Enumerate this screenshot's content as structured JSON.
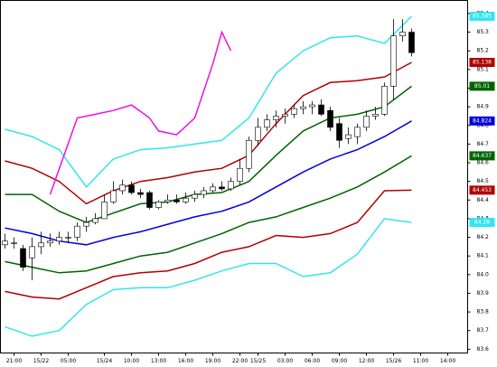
{
  "chart_data": {
    "type": "candlestick",
    "xlim": [
      -0.5,
      51.2
    ],
    "ylim": [
      83.58,
      85.47
    ],
    "xticks": [
      {
        "value": 1,
        "label": "21:00"
      },
      {
        "value": 4,
        "label": "15/22"
      },
      {
        "value": 7,
        "label": "05:00"
      },
      {
        "value": 11,
        "label": "15/24"
      },
      {
        "value": 14,
        "label": "10:00"
      },
      {
        "value": 17,
        "label": "13:00"
      },
      {
        "value": 20,
        "label": "16:00"
      },
      {
        "value": 23,
        "label": "19:00"
      },
      {
        "value": 26,
        "label": "22:00"
      },
      {
        "value": 28,
        "label": "15/25"
      },
      {
        "value": 31,
        "label": "03:00"
      },
      {
        "value": 34,
        "label": "06:00"
      },
      {
        "value": 37,
        "label": "09:00"
      },
      {
        "value": 40,
        "label": "12:00"
      },
      {
        "value": 43,
        "label": "15/26"
      },
      {
        "value": 46,
        "label": "11:00"
      },
      {
        "value": 49,
        "label": "14:00"
      }
    ],
    "yticks": [
      83.6,
      83.7,
      83.8,
      83.9,
      {
        "value": 84,
        "label": "84.0"
      },
      84.1,
      84.2,
      84.3,
      84.4,
      84.5,
      84.6,
      84.7,
      84.8,
      84.9,
      {
        "value": 85,
        "label": "85.0"
      },
      85.1,
      85.2,
      85.3,
      85.4
    ],
    "up_color": "#ffffff",
    "down_color": "#000000",
    "open": [
      84.16,
      84.17,
      84.14,
      84.09,
      84.15,
      84.17,
      84.18,
      84.2,
      84.2,
      84.26,
      84.28,
      84.3,
      84.39,
      84.45,
      84.48,
      84.44,
      84.44,
      84.36,
      84.39,
      84.4,
      84.39,
      84.41,
      84.43,
      84.45,
      84.47,
      84.46,
      84.5,
      84.57,
      84.72,
      84.79,
      84.83,
      84.85,
      84.86,
      84.89,
      84.9,
      84.91,
      84.88,
      84.81,
      84.73,
      84.74,
      84.79,
      84.85,
      84.86,
      85.01,
      85.28,
      85.3
    ],
    "high": [
      84.22,
      84.2,
      84.16,
      84.2,
      84.23,
      84.22,
      84.23,
      84.23,
      84.28,
      84.31,
      84.33,
      84.43,
      84.5,
      84.51,
      84.5,
      84.46,
      84.45,
      84.4,
      84.43,
      84.43,
      84.44,
      84.45,
      84.47,
      84.49,
      84.5,
      84.52,
      84.62,
      84.74,
      84.84,
      84.86,
      84.88,
      84.89,
      84.91,
      84.93,
      84.93,
      84.94,
      84.9,
      84.84,
      84.79,
      84.81,
      84.88,
      84.9,
      85.03,
      85.37,
      85.37,
      85.32
    ],
    "low": [
      84.14,
      84.14,
      84.02,
      83.97,
      84.11,
      84.15,
      84.16,
      84.17,
      84.18,
      84.23,
      84.27,
      84.3,
      84.38,
      84.43,
      84.43,
      84.41,
      84.35,
      84.35,
      84.38,
      84.38,
      84.38,
      84.39,
      84.41,
      84.44,
      84.45,
      84.45,
      84.48,
      84.55,
      84.69,
      84.77,
      84.79,
      84.81,
      84.84,
      84.86,
      84.86,
      84.85,
      84.77,
      84.68,
      84.7,
      84.7,
      84.77,
      84.83,
      84.85,
      84.94,
      85.25,
      85.17
    ],
    "close": [
      84.18,
      84.17,
      84.04,
      84.15,
      84.17,
      84.18,
      84.2,
      84.2,
      84.26,
      84.28,
      84.3,
      84.39,
      84.45,
      84.48,
      84.44,
      84.43,
      84.36,
      84.39,
      84.4,
      84.39,
      84.41,
      84.43,
      84.45,
      84.47,
      84.46,
      84.5,
      84.57,
      84.72,
      84.79,
      84.83,
      84.85,
      84.86,
      84.89,
      84.9,
      84.91,
      84.86,
      84.79,
      84.72,
      84.75,
      84.79,
      84.85,
      84.86,
      85.01,
      85.28,
      85.3,
      85.19
    ],
    "series": [
      {
        "color": "#33e5ee",
        "x": [
          0,
          3,
          6,
          9,
          12,
          15,
          18,
          21,
          24,
          27,
          30,
          33,
          36,
          39,
          42,
          45
        ],
        "values": [
          84.78,
          84.74,
          84.67,
          84.47,
          84.62,
          84.67,
          84.68,
          84.7,
          84.72,
          84.84,
          85.08,
          85.2,
          85.27,
          85.28,
          85.24,
          85.385
        ]
      },
      {
        "color": "#b00000",
        "x": [
          0,
          3,
          6,
          9,
          12,
          15,
          18,
          21,
          24,
          27,
          30,
          33,
          36,
          39,
          42,
          45
        ],
        "values": [
          84.61,
          84.57,
          84.5,
          84.38,
          84.45,
          84.5,
          84.52,
          84.55,
          84.57,
          84.64,
          84.81,
          84.96,
          85.03,
          85.04,
          85.06,
          85.138
        ]
      },
      {
        "color": "#006400",
        "x": [
          0,
          3,
          6,
          9,
          12,
          15,
          18,
          21,
          24,
          27,
          30,
          33,
          36,
          39,
          42,
          45
        ],
        "values": [
          84.43,
          84.43,
          84.34,
          84.28,
          84.33,
          84.38,
          84.39,
          84.43,
          84.44,
          84.5,
          84.64,
          84.77,
          84.84,
          84.86,
          84.9,
          85.01
        ]
      },
      {
        "color": "#0000dd",
        "x": [
          0,
          3,
          6,
          9,
          12,
          15,
          18,
          21,
          24,
          27,
          30,
          33,
          36,
          39,
          42,
          45
        ],
        "values": [
          84.25,
          84.22,
          84.18,
          84.16,
          84.2,
          84.23,
          84.27,
          84.31,
          84.34,
          84.39,
          84.47,
          84.55,
          84.62,
          84.67,
          84.74,
          84.824
        ]
      },
      {
        "color": "#006400",
        "x": [
          0,
          3,
          6,
          9,
          12,
          15,
          18,
          21,
          24,
          27,
          30,
          33,
          36,
          39,
          42,
          45
        ],
        "values": [
          84.07,
          84.04,
          84.01,
          84.02,
          84.06,
          84.1,
          84.12,
          84.17,
          84.22,
          84.28,
          84.31,
          84.36,
          84.41,
          84.47,
          84.55,
          84.637
        ]
      },
      {
        "color": "#b00000",
        "x": [
          0,
          3,
          6,
          9,
          12,
          15,
          18,
          21,
          24,
          27,
          30,
          33,
          36,
          39,
          42,
          45
        ],
        "values": [
          83.91,
          83.88,
          83.87,
          83.93,
          83.99,
          84.01,
          84.02,
          84.06,
          84.12,
          84.15,
          84.21,
          84.2,
          84.22,
          84.28,
          84.45,
          84.453
        ]
      },
      {
        "color": "#33e5ee",
        "x": [
          0,
          3,
          6,
          9,
          12,
          15,
          18,
          21,
          24,
          27,
          30,
          33,
          36,
          39,
          42,
          45
        ],
        "values": [
          83.72,
          83.67,
          83.7,
          83.84,
          83.92,
          83.93,
          83.93,
          83.97,
          84.02,
          84.06,
          84.06,
          83.99,
          84.01,
          84.11,
          84.3,
          84.28
        ]
      },
      {
        "color": "#ee11dd",
        "x": [
          5,
          8,
          10,
          12,
          14,
          16,
          17,
          19,
          21,
          23,
          24,
          25
        ],
        "values": [
          84.43,
          84.84,
          84.86,
          84.88,
          84.91,
          84.84,
          84.77,
          84.75,
          84.84,
          85.13,
          85.3,
          85.2
        ],
        "no_last_label": true
      }
    ]
  }
}
